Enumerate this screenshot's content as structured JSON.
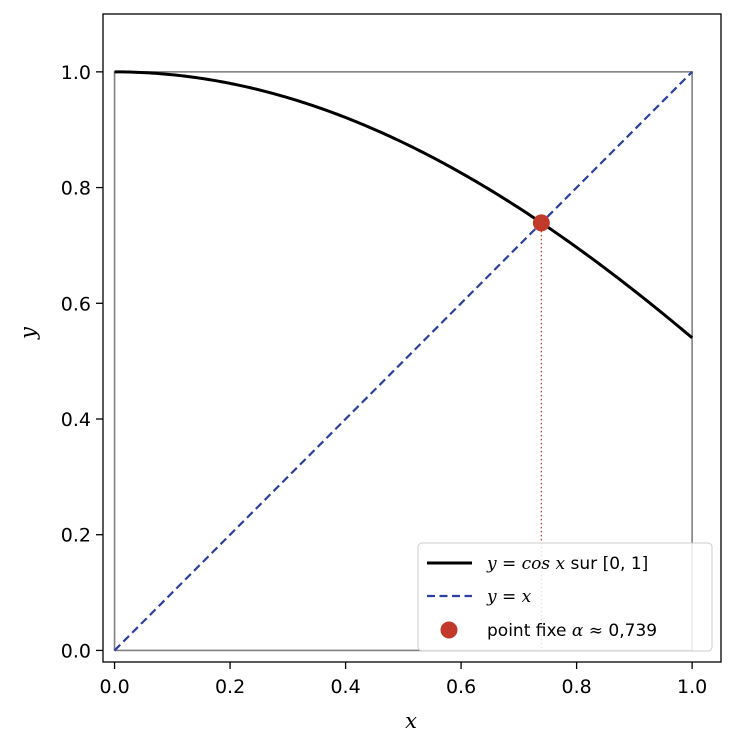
{
  "chart_data": {
    "type": "line",
    "xlabel": "x",
    "ylabel": "y",
    "xlim": [
      -0.02,
      1.05
    ],
    "ylim": [
      -0.02,
      1.1
    ],
    "x_ticks": [
      0.0,
      0.2,
      0.4,
      0.6,
      0.8,
      1.0
    ],
    "y_ticks": [
      0.0,
      0.2,
      0.4,
      0.6,
      0.8,
      1.0
    ],
    "x_tick_labels": [
      "0.0",
      "0.2",
      "0.4",
      "0.6",
      "0.8",
      "1.0"
    ],
    "y_tick_labels": [
      "0.0",
      "0.2",
      "0.4",
      "0.6",
      "0.8",
      "1.0"
    ],
    "grid": false,
    "unit_square": {
      "x": [
        0,
        1
      ],
      "y": [
        0,
        1
      ],
      "color": "#808080"
    },
    "series": [
      {
        "name": "y = cos x sur [0, 1]",
        "function": "cos",
        "x_range": [
          0,
          1
        ],
        "color": "#000000",
        "style": "solid",
        "points": [
          [
            0.0,
            1.0
          ],
          [
            0.1,
            0.995
          ],
          [
            0.2,
            0.98
          ],
          [
            0.3,
            0.955
          ],
          [
            0.4,
            0.921
          ],
          [
            0.5,
            0.878
          ],
          [
            0.6,
            0.825
          ],
          [
            0.7,
            0.765
          ],
          [
            0.8,
            0.697
          ],
          [
            0.9,
            0.622
          ],
          [
            1.0,
            0.54
          ]
        ]
      },
      {
        "name": "y = x",
        "function": "identity",
        "x_range": [
          0,
          1
        ],
        "color": "#2a3fa0",
        "style": "dashed",
        "points": [
          [
            0.0,
            0.0
          ],
          [
            1.0,
            1.0
          ]
        ]
      }
    ],
    "fixed_point": {
      "name": "point fixe α ≈ 0,739",
      "x": 0.739,
      "y": 0.739,
      "color": "#c0392b"
    },
    "legend": {
      "placement": "lower-right",
      "entries": [
        {
          "label_math": "y = cos x",
          "label_rest": " sur [0, 1]"
        },
        {
          "label_math": "y = x",
          "label_rest": ""
        },
        {
          "label_pre": "point fixe ",
          "label_math": "α ≈ ",
          "label_rest": "0,739"
        }
      ]
    }
  }
}
